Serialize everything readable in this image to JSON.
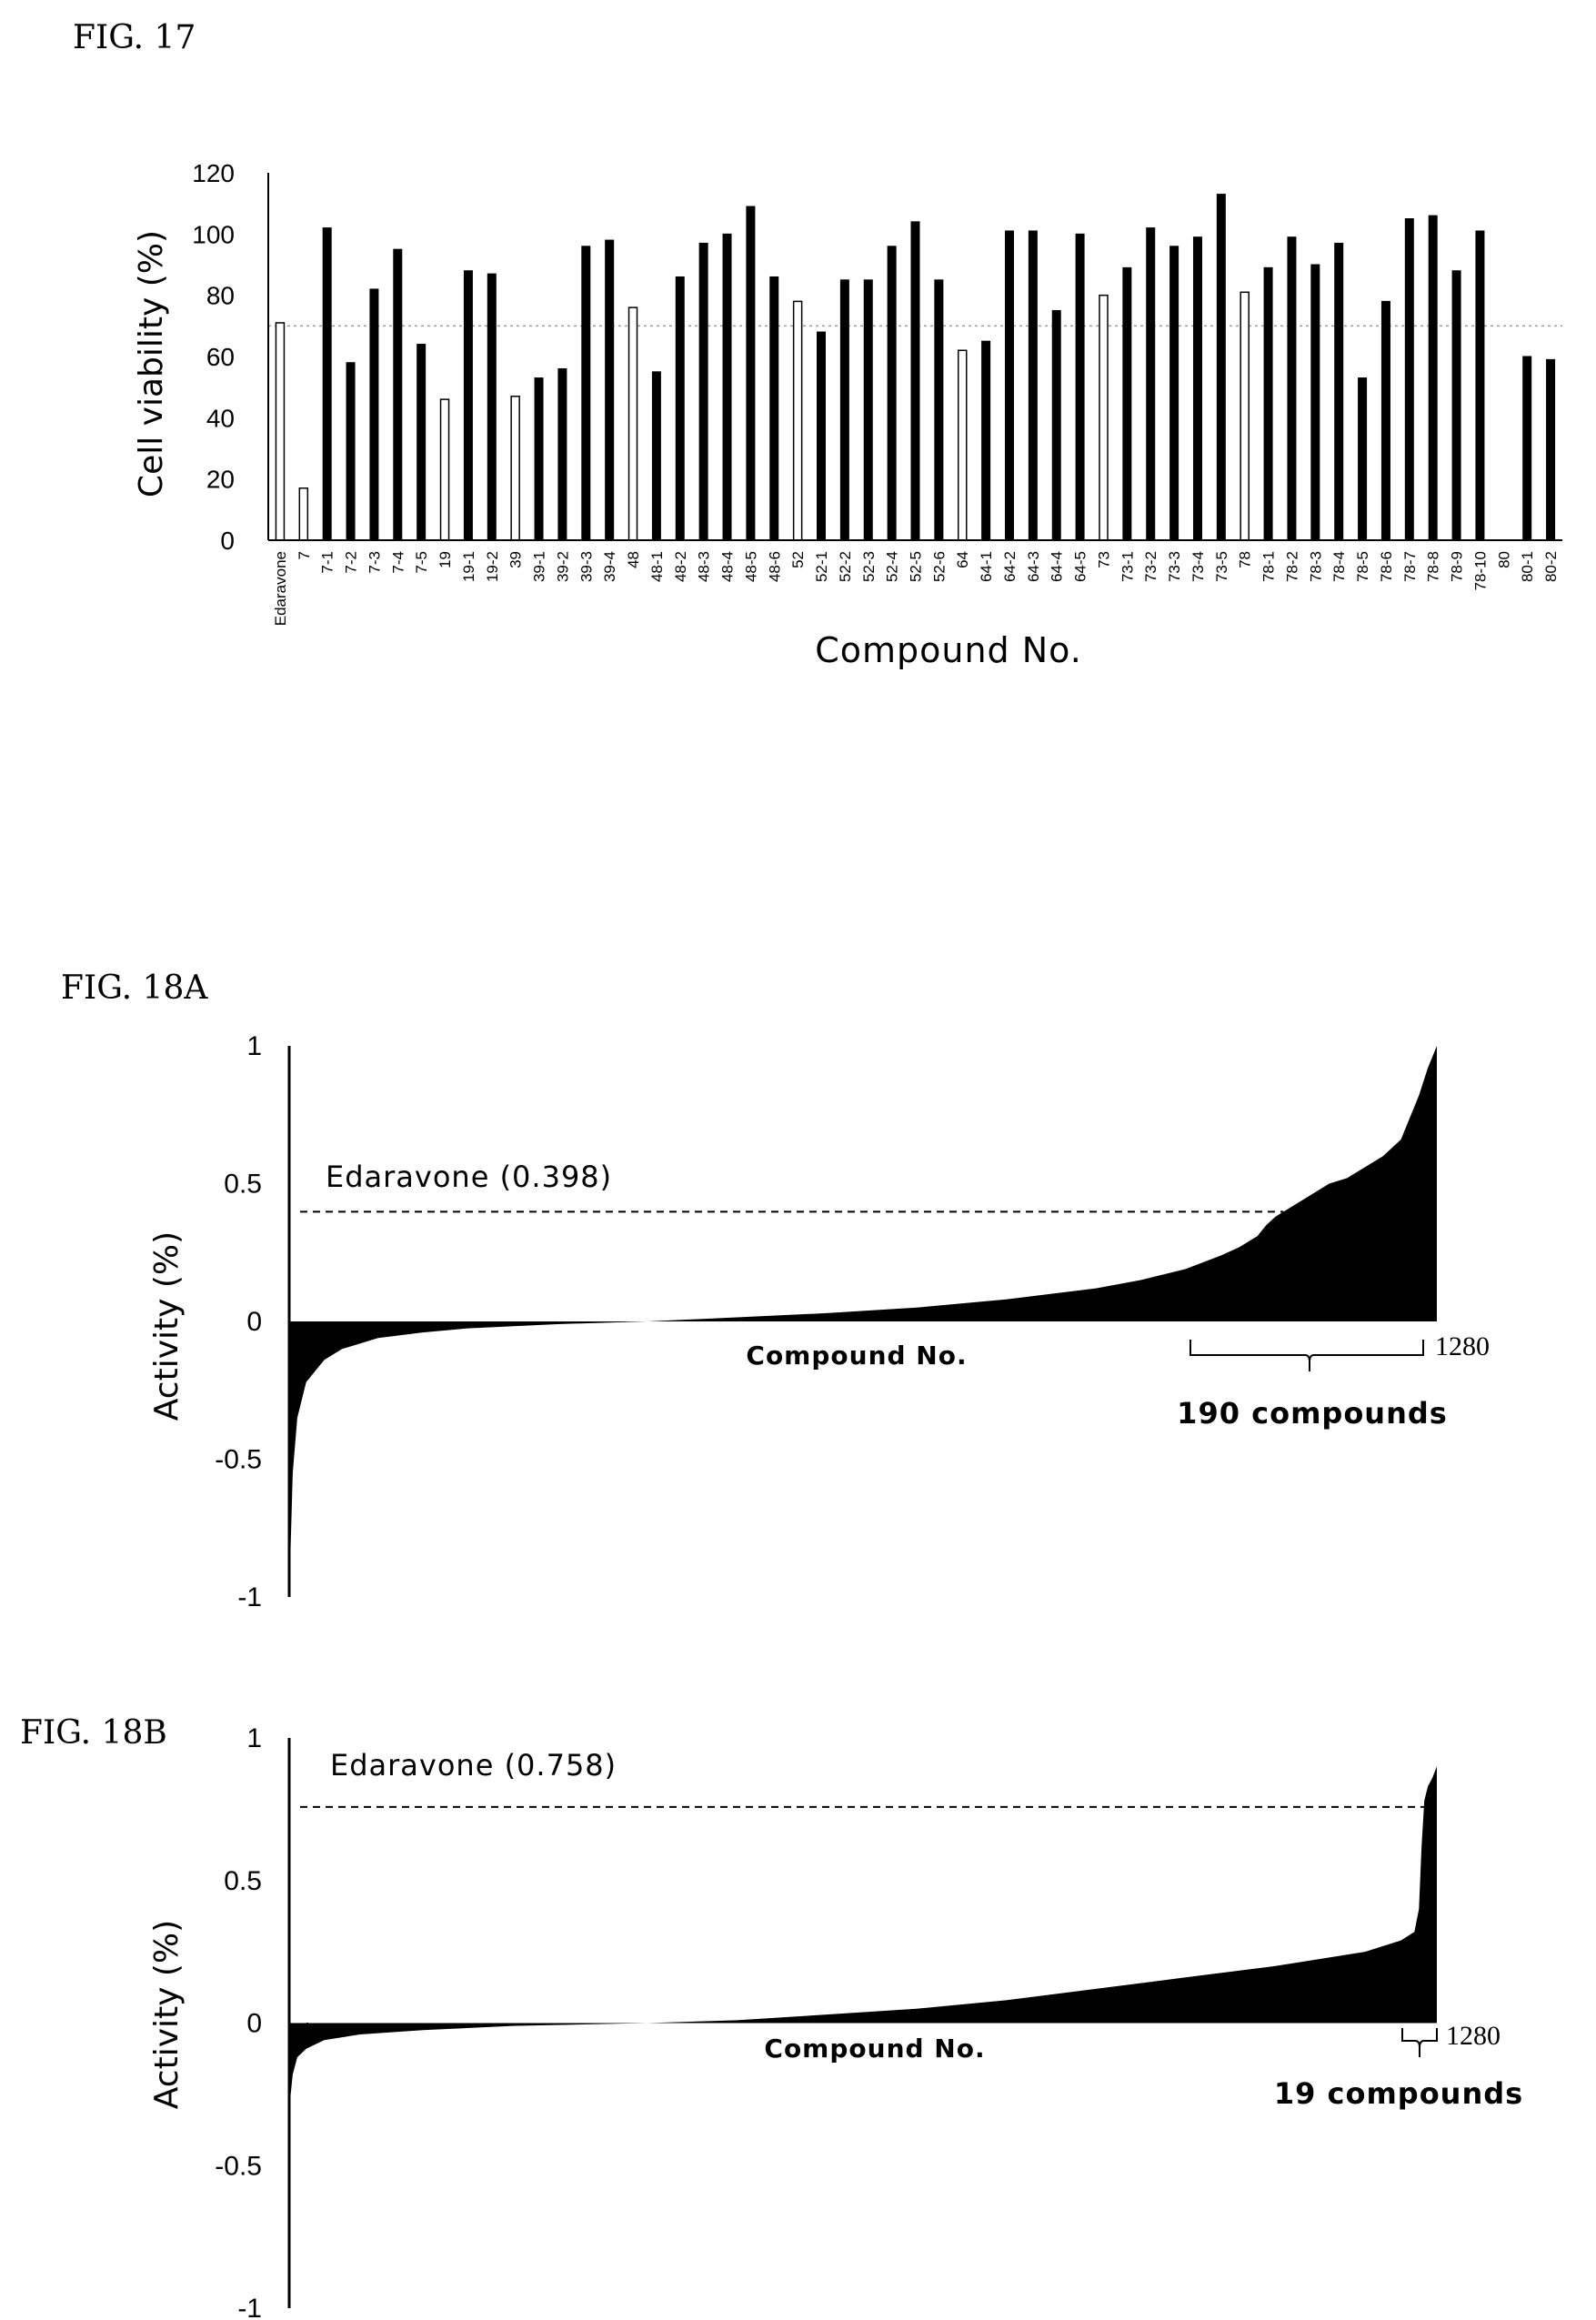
{
  "chart_data": [
    {
      "figure_label": "FIG. 17",
      "type": "bar",
      "ylabel": "Cell viability (%)",
      "xlabel": "Compound No.",
      "ylim": [
        0,
        120
      ],
      "yticks": [
        0,
        20,
        40,
        60,
        80,
        100,
        120
      ],
      "reference_line": 70,
      "categories": [
        "Edaravone",
        "7",
        "7-1",
        "7-2",
        "7-3",
        "7-4",
        "7-5",
        "19",
        "19-1",
        "19-2",
        "39",
        "39-1",
        "39-2",
        "39-3",
        "39-4",
        "48",
        "48-1",
        "48-2",
        "48-3",
        "48-4",
        "48-5",
        "48-6",
        "52",
        "52-1",
        "52-2",
        "52-3",
        "52-4",
        "52-5",
        "52-6",
        "64",
        "64-1",
        "64-2",
        "64-3",
        "64-4",
        "64-5",
        "73",
        "73-1",
        "73-2",
        "73-3",
        "73-4",
        "73-5",
        "78",
        "78-1",
        "78-2",
        "78-3",
        "78-4",
        "78-5",
        "78-6",
        "78-7",
        "78-8",
        "78-9",
        "78-10",
        "80",
        "80-1",
        "80-2"
      ],
      "values": [
        71,
        17,
        102,
        58,
        82,
        95,
        64,
        46,
        88,
        87,
        47,
        53,
        56,
        96,
        98,
        76,
        55,
        86,
        97,
        100,
        109,
        86,
        78,
        68,
        85,
        85,
        96,
        104,
        85,
        62,
        65,
        101,
        101,
        75,
        100,
        80,
        89,
        102,
        96,
        99,
        113,
        81,
        89,
        99,
        90,
        97,
        53,
        78,
        105,
        106,
        88,
        101,
        null,
        60,
        59
      ],
      "bar_fill": [
        "open",
        "open",
        "solid",
        "solid",
        "solid",
        "solid",
        "solid",
        "open",
        "solid",
        "solid",
        "open",
        "solid",
        "solid",
        "solid",
        "solid",
        "open",
        "solid",
        "solid",
        "solid",
        "solid",
        "solid",
        "solid",
        "open",
        "solid",
        "solid",
        "solid",
        "solid",
        "solid",
        "solid",
        "open",
        "solid",
        "solid",
        "solid",
        "solid",
        "solid",
        "open",
        "solid",
        "solid",
        "solid",
        "solid",
        "solid",
        "open",
        "solid",
        "solid",
        "solid",
        "solid",
        "solid",
        "solid",
        "solid",
        "solid",
        "solid",
        "solid",
        "open",
        "solid",
        "solid"
      ]
    },
    {
      "figure_label": "FIG. 18A",
      "type": "area",
      "ylabel": "Activity (%)",
      "xlabel": "Compound No.",
      "ylim": [
        -1,
        1
      ],
      "yticks": [
        -1,
        -0.5,
        0,
        0.5,
        1
      ],
      "ytick_labels": [
        "-1",
        "-0.5",
        "0",
        "0.5",
        "1"
      ],
      "n_compounds": 1280,
      "end_label": "1280",
      "reference_label": "Edaravone (0.398)",
      "reference_value": 0.398,
      "bracket_label": "190 compounds",
      "x": [
        1,
        5,
        10,
        20,
        40,
        60,
        100,
        150,
        200,
        300,
        400,
        500,
        600,
        700,
        800,
        900,
        950,
        1000,
        1040,
        1060,
        1080,
        1090,
        1100,
        1120,
        1140,
        1160,
        1180,
        1200,
        1220,
        1240,
        1260,
        1270,
        1280
      ],
      "y": [
        -1.0,
        -0.55,
        -0.35,
        -0.22,
        -0.14,
        -0.1,
        -0.06,
        -0.04,
        -0.025,
        -0.01,
        0.0,
        0.015,
        0.03,
        0.05,
        0.08,
        0.12,
        0.15,
        0.19,
        0.24,
        0.27,
        0.31,
        0.35,
        0.38,
        0.42,
        0.46,
        0.5,
        0.52,
        0.56,
        0.6,
        0.66,
        0.82,
        0.92,
        1.0
      ]
    },
    {
      "figure_label": "FIG. 18B",
      "type": "area",
      "ylabel": "Activity (%)",
      "xlabel": "Compound No.",
      "ylim": [
        -1,
        1
      ],
      "yticks": [
        -1,
        -0.5,
        0,
        0.5,
        1
      ],
      "ytick_labels": [
        "-1",
        "-0.5",
        "0",
        "0.5",
        "1"
      ],
      "n_compounds": 1280,
      "end_label": "1280",
      "reference_label": "Edaravone (0.758)",
      "reference_value": 0.758,
      "bracket_label": "19 compounds",
      "x": [
        1,
        5,
        10,
        20,
        40,
        80,
        150,
        250,
        400,
        500,
        600,
        700,
        800,
        900,
        1000,
        1100,
        1200,
        1240,
        1255,
        1260,
        1263,
        1266,
        1270,
        1275,
        1280
      ],
      "y": [
        -0.3,
        -0.18,
        -0.12,
        -0.09,
        -0.06,
        -0.04,
        -0.025,
        -0.01,
        0.0,
        0.01,
        0.03,
        0.05,
        0.08,
        0.12,
        0.16,
        0.2,
        0.25,
        0.29,
        0.32,
        0.4,
        0.62,
        0.78,
        0.83,
        0.86,
        0.9
      ]
    }
  ]
}
